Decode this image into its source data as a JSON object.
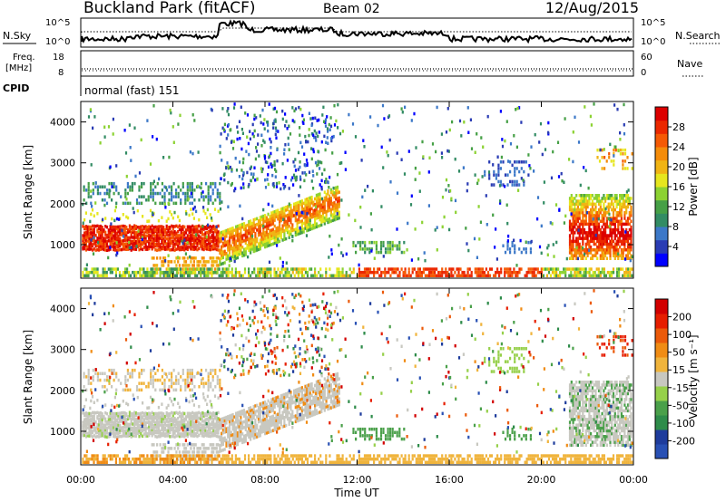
{
  "header": {
    "station": "Buckland Park (fitACF)",
    "beam": "Beam 02",
    "date": "12/Aug/2015"
  },
  "chart_data": [
    {
      "type": "line",
      "name": "noise",
      "left_label": "N.Sky",
      "right_label": "N.Search",
      "left_ticks": [
        "10^5",
        "10^0"
      ],
      "right_ticks": [
        "10^5",
        "10^0"
      ]
    },
    {
      "type": "line",
      "name": "frequency",
      "left_label_1": "Freq.",
      "left_label_2": "[MHz]",
      "right_label": "Nave",
      "left_ticks": [
        "18",
        "8"
      ],
      "right_ticks": [
        "60",
        "0"
      ],
      "cpid_label": "CPID",
      "cpid_text": "normal (fast) 151"
    },
    {
      "type": "heatmap",
      "name": "power",
      "ylabel": "Slant Range [km]",
      "ylim": [
        180,
        4500
      ],
      "yticks": [
        "4000",
        "3000",
        "2000",
        "1000"
      ],
      "ytick_values": [
        4000,
        3000,
        2000,
        1000
      ],
      "xlim": [
        0,
        24
      ],
      "xticks": [
        "00:00",
        "04:00",
        "08:00",
        "12:00",
        "16:00",
        "20:00",
        "00:00"
      ],
      "xtick_values": [
        0,
        4,
        8,
        12,
        16,
        20,
        24
      ],
      "colorbar_label": "Power [dB]",
      "colorbar_ticks": [
        "28",
        "24",
        "20",
        "16",
        "12",
        "8",
        "4"
      ],
      "colorbar_colors": [
        "#0000ff",
        "#2a3cb4",
        "#3c78c8",
        "#328c64",
        "#46a046",
        "#8cd232",
        "#e6e61e",
        "#f0b414",
        "#f58c0a",
        "#f55a05",
        "#eb2800",
        "#dc0000"
      ]
    },
    {
      "type": "heatmap",
      "name": "velocity",
      "ylabel": "Slant Range [km]",
      "ylim": [
        180,
        4500
      ],
      "yticks": [
        "4000",
        "3000",
        "2000",
        "1000"
      ],
      "ytick_values": [
        4000,
        3000,
        2000,
        1000
      ],
      "xlim": [
        0,
        24
      ],
      "xticks": [
        "00:00",
        "04:00",
        "08:00",
        "12:00",
        "16:00",
        "20:00",
        "00:00"
      ],
      "xtick_values": [
        0,
        4,
        8,
        12,
        16,
        20,
        24
      ],
      "xlabel": "Time UT",
      "colorbar_label": "Velocity [m s⁻¹]",
      "colorbar_ticks": [
        "200",
        "100",
        "50",
        "15",
        "-15",
        "-50",
        "-100",
        "-200"
      ],
      "colorbar_colors": [
        "#2850b4",
        "#1e3c9c",
        "#2e8c4a",
        "#4aa04a",
        "#96d04a",
        "#c8c8c0",
        "#f0b43c",
        "#f08c14",
        "#eb5a0a",
        "#e61e00",
        "#d20000"
      ]
    }
  ]
}
